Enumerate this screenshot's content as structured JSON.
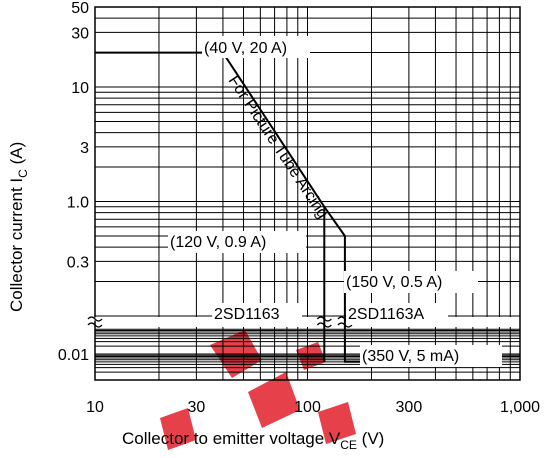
{
  "chart_data": {
    "type": "line",
    "title": "",
    "xlabel": {
      "main": "Collector to emitter voltage  V",
      "sub": "CE",
      "unit": "  (V)"
    },
    "ylabel": {
      "main": "Collector current  I",
      "sub": "C",
      "unit": "  (A)"
    },
    "x_scale": "log",
    "y_scale": "log-broken",
    "xlim": [
      10,
      1000
    ],
    "x_ticks": [
      {
        "value": 10,
        "label": "10"
      },
      {
        "value": 30,
        "label": "30"
      },
      {
        "value": 100,
        "label": "100"
      },
      {
        "value": 300,
        "label": "300"
      },
      {
        "value": 1000,
        "label": "1,000"
      }
    ],
    "y_ticks": [
      {
        "value": 50,
        "label": "50"
      },
      {
        "value": 30,
        "label": "30"
      },
      {
        "value": 10,
        "label": "10"
      },
      {
        "value": 3,
        "label": "3"
      },
      {
        "value": 1.0,
        "label": "1.0"
      },
      {
        "value": 0.3,
        "label": "0.3"
      },
      {
        "value": 0.01,
        "label": "0.01"
      }
    ],
    "grid": true,
    "series": [
      {
        "points": [
          {
            "x": 10,
            "y": 20
          },
          {
            "x": 40,
            "y": 20
          },
          {
            "x": 120,
            "y": 0.9
          },
          {
            "x": 150,
            "y": 0.5
          },
          {
            "x": 150,
            "y": 0.005
          },
          {
            "x": 350,
            "y": 0.005
          }
        ]
      }
    ],
    "annotations": [
      {
        "text": "(40 V, 20 A)"
      },
      {
        "text": "For Picture Tube Arcing"
      },
      {
        "text": "(120 V, 0.9 A)"
      },
      {
        "text": "(150 V, 0.5 A)"
      },
      {
        "text": "(350 V, 5 mA)"
      },
      {
        "text": "2SD1163"
      },
      {
        "text": "2SD1163A"
      }
    ]
  },
  "watermark": {
    "color": "#e2202a"
  }
}
